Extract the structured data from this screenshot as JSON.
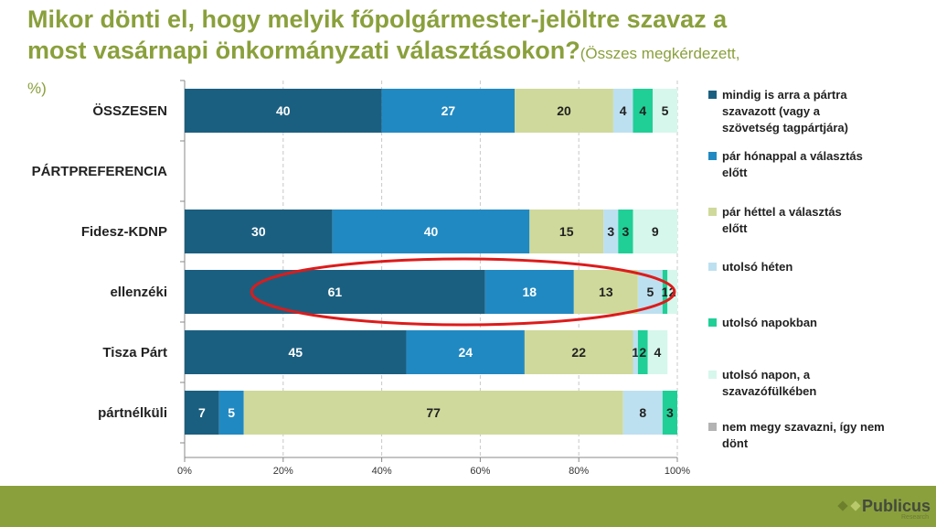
{
  "title": {
    "main": "Mikor dönti el, hogy melyik főpolgármester-jelöltre szavaz a most vasárnapi önkormányzati választásokon?",
    "subtitle": "(Összes megkérdezett, %)"
  },
  "logo": {
    "name": "Publicus",
    "sub": "Research"
  },
  "colors": [
    "#1b5f80",
    "#2189c2",
    "#cfd99b",
    "#bde0f0",
    "#1fcf96",
    "#d6f7ec",
    "#b3b3b3"
  ],
  "chart_data": {
    "type": "bar",
    "orientation": "horizontal",
    "stacked": "percent",
    "categories": [
      "ÖSSZESEN",
      "PÁRTPREFERENCIA",
      "Fidesz-KDNP",
      "ellenzéki",
      "Tisza Párt",
      "pártnélküli"
    ],
    "series": [
      {
        "name": "mindig is arra a pártra szavazott (vagy a szövetség tagpártjára)",
        "values": [
          40,
          null,
          30,
          61,
          45,
          7
        ]
      },
      {
        "name": "pár hónappal a választás előtt",
        "values": [
          27,
          null,
          40,
          18,
          24,
          5
        ]
      },
      {
        "name": "pár héttel a választás előtt",
        "values": [
          20,
          null,
          15,
          13,
          22,
          77
        ]
      },
      {
        "name": "utolsó héten",
        "values": [
          4,
          null,
          3,
          5,
          1,
          8
        ]
      },
      {
        "name": "utolsó napokban",
        "values": [
          4,
          null,
          3,
          1,
          2,
          3
        ]
      },
      {
        "name": "utolsó napon, a szavazófülkében",
        "values": [
          5,
          null,
          9,
          2,
          4,
          0
        ]
      },
      {
        "name": "nem megy szavazni, így nem dönt",
        "values": [
          0,
          null,
          0,
          0,
          0,
          0
        ]
      }
    ],
    "bar_labels": [
      [
        "40",
        "27",
        "20",
        "4",
        "4",
        "5",
        ""
      ],
      [
        "",
        "",
        "",
        "",
        "",
        "",
        ""
      ],
      [
        "30",
        "40",
        "15",
        "3",
        "3",
        "9",
        ""
      ],
      [
        "61",
        "18",
        "13",
        "5",
        "1",
        "2",
        ""
      ],
      [
        "45",
        "24",
        "22",
        "1",
        "2",
        "4",
        ""
      ],
      [
        "7",
        "5",
        "77",
        "8",
        "3",
        "",
        ""
      ]
    ],
    "xticks": [
      "0%",
      "20%",
      "40%",
      "60%",
      "80%",
      "100%"
    ],
    "xlim": [
      0,
      100
    ],
    "highlight": "ellenzéki",
    "legend_position": "right"
  }
}
